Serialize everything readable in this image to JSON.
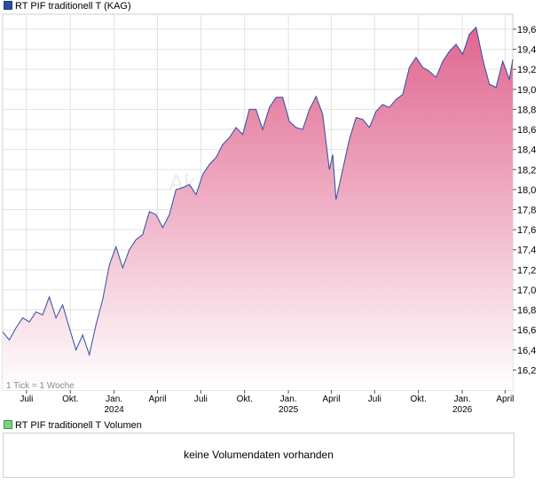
{
  "legend": {
    "main": "RT PIF traditionell T (KAG)",
    "volume": "RT PIF traditionell T Volumen"
  },
  "watermark": "Ak",
  "tick_info": "1 Tick = 1 Woche",
  "volume_message": "keine Volumendaten vorhanden",
  "colors": {
    "line": "#2b4ea3",
    "fill_top": "#e0658f",
    "fill_bottom": "#ffffff",
    "grid": "#e2e2e2"
  },
  "chart_data": {
    "type": "area",
    "series": [
      {
        "x": [
          "2023-05-12",
          "2023-05-26",
          "2023-06-09",
          "2023-06-23",
          "2023-07-07",
          "2023-07-21",
          "2023-08-04",
          "2023-08-18",
          "2023-09-01",
          "2023-09-15",
          "2023-09-29",
          "2023-10-13",
          "2023-10-27",
          "2023-11-10",
          "2023-11-24",
          "2023-12-08",
          "2023-12-22",
          "2024-01-05",
          "2024-01-19",
          "2024-02-02",
          "2024-02-16",
          "2024-03-01",
          "2024-03-15",
          "2024-03-29",
          "2024-04-12",
          "2024-04-26",
          "2024-05-10",
          "2024-05-24",
          "2024-06-07",
          "2024-06-21",
          "2024-07-05",
          "2024-07-19",
          "2024-08-02",
          "2024-08-16",
          "2024-08-30",
          "2024-09-13",
          "2024-09-27",
          "2024-10-11",
          "2024-10-25",
          "2024-11-08",
          "2024-11-22",
          "2024-12-06",
          "2024-12-20",
          "2025-01-03",
          "2025-01-17",
          "2025-01-31",
          "2025-02-14",
          "2025-02-28",
          "2025-03-14",
          "2025-03-28",
          "2025-04-04",
          "2025-04-11",
          "2025-04-25",
          "2025-05-09",
          "2025-05-23",
          "2025-06-06",
          "2025-06-20",
          "2025-07-04",
          "2025-07-18",
          "2025-08-01",
          "2025-08-15",
          "2025-08-29",
          "2025-09-12",
          "2025-09-26",
          "2025-10-10",
          "2025-10-24",
          "2025-11-07",
          "2025-11-21",
          "2025-12-05",
          "2025-12-19",
          "2026-01-02",
          "2026-01-16",
          "2026-01-30",
          "2026-02-13",
          "2026-02-27",
          "2026-03-13",
          "2026-03-27",
          "2026-04-10",
          "2026-04-17"
        ],
        "y": [
          16.58,
          16.5,
          16.62,
          16.72,
          16.68,
          16.78,
          16.75,
          16.93,
          16.72,
          16.85,
          16.62,
          16.4,
          16.55,
          16.35,
          16.65,
          16.9,
          17.25,
          17.43,
          17.22,
          17.4,
          17.5,
          17.55,
          17.78,
          17.75,
          17.62,
          17.75,
          18.0,
          18.02,
          18.05,
          17.95,
          18.15,
          18.25,
          18.32,
          18.45,
          18.52,
          18.62,
          18.55,
          18.8,
          18.8,
          18.6,
          18.82,
          18.92,
          18.92,
          18.68,
          18.62,
          18.6,
          18.8,
          18.93,
          18.75,
          18.2,
          18.35,
          17.9,
          18.2,
          18.5,
          18.72,
          18.7,
          18.62,
          18.78,
          18.85,
          18.82,
          18.9,
          18.95,
          19.22,
          19.32,
          19.22,
          19.18,
          19.12,
          19.28,
          19.38,
          19.45,
          19.35,
          19.55,
          19.62,
          19.3,
          19.05,
          19.02,
          19.28,
          19.1,
          19.3
        ]
      }
    ],
    "ylim": [
      16.0,
      19.75
    ],
    "yticks": [
      16.2,
      16.4,
      16.6,
      16.8,
      17.0,
      17.2,
      17.4,
      17.6,
      17.8,
      18.0,
      18.2,
      18.4,
      18.6,
      18.8,
      19.0,
      19.2,
      19.4,
      19.6
    ],
    "ytick_labels": [
      "16,2",
      "16,4",
      "16,6",
      "16,8",
      "17,0",
      "17,2",
      "17,4",
      "17,6",
      "17,8",
      "18,0",
      "18,2",
      "18,4",
      "18,6",
      "18,8",
      "19,0",
      "19,2",
      "19,4",
      "19,6"
    ],
    "xlim": [
      "2023-05-12",
      "2026-04-17"
    ],
    "xticks": [
      {
        "date": "2023-07-01",
        "label": "Juli",
        "year": ""
      },
      {
        "date": "2023-10-01",
        "label": "Okt.",
        "year": ""
      },
      {
        "date": "2024-01-01",
        "label": "Jan.",
        "year": "2024"
      },
      {
        "date": "2024-04-01",
        "label": "April",
        "year": ""
      },
      {
        "date": "2024-07-01",
        "label": "Juli",
        "year": ""
      },
      {
        "date": "2024-10-01",
        "label": "Okt.",
        "year": ""
      },
      {
        "date": "2025-01-01",
        "label": "Jan.",
        "year": "2025"
      },
      {
        "date": "2025-04-01",
        "label": "April",
        "year": ""
      },
      {
        "date": "2025-07-01",
        "label": "Juli",
        "year": ""
      },
      {
        "date": "2025-10-01",
        "label": "Okt.",
        "year": ""
      },
      {
        "date": "2026-01-01",
        "label": "Jan.",
        "year": "2026"
      },
      {
        "date": "2026-04-01",
        "label": "April",
        "year": ""
      }
    ],
    "grid": true,
    "yaxis_side": "right"
  }
}
